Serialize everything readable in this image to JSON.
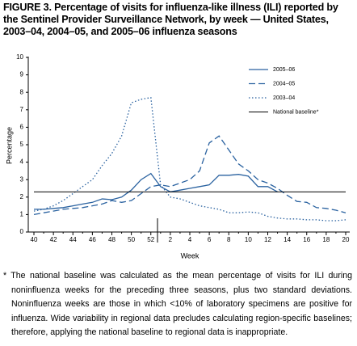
{
  "chart_data": {
    "type": "line",
    "title": "FIGURE 3. Percentage of visits for influenza-like illness (ILI) reported by the Sentinel Provider Surveillance Network, by week — United States, 2003–04, 2004–05, and 2005–06 influenza seasons",
    "ylabel": "Percentage",
    "xlabel": "Week",
    "categories": [
      "40",
      null,
      "42",
      null,
      "44",
      null,
      "46",
      null,
      "48",
      null,
      "50",
      null,
      "52",
      null,
      "2",
      null,
      "4",
      null,
      "6",
      null,
      "8",
      null,
      "10",
      null,
      "12",
      null,
      "14",
      null,
      "16",
      null,
      "18",
      null,
      "20"
    ],
    "ylim": [
      0,
      10
    ],
    "yticks": [
      0,
      1,
      2,
      3,
      4,
      5,
      6,
      7,
      8,
      9,
      10
    ],
    "series": [
      {
        "name": "2005–06",
        "color": "#2a62a0",
        "dash": "solid",
        "values": [
          1.3,
          1.3,
          1.35,
          1.4,
          1.5,
          1.6,
          1.7,
          1.9,
          1.85,
          2.0,
          2.4,
          3.0,
          3.35,
          2.6,
          2.3,
          2.4,
          2.5,
          2.6,
          2.7,
          3.25,
          3.25,
          3.3,
          3.2,
          2.6,
          2.6,
          2.3,
          null,
          null,
          null,
          null,
          null,
          null,
          null
        ]
      },
      {
        "name": "2004–05",
        "color": "#2a62a0",
        "dash": "dashed",
        "values": [
          1.0,
          1.1,
          1.2,
          1.3,
          1.35,
          1.4,
          1.5,
          1.6,
          1.8,
          1.7,
          1.8,
          2.2,
          2.6,
          2.7,
          2.6,
          2.8,
          3.0,
          3.5,
          5.1,
          5.5,
          4.7,
          3.9,
          3.5,
          3.0,
          2.8,
          2.5,
          2.1,
          1.75,
          1.7,
          1.4,
          1.35,
          1.25,
          1.1
        ]
      },
      {
        "name": "2003–04",
        "color": "#2a62a0",
        "dash": "dotted",
        "values": [
          1.2,
          1.3,
          1.5,
          1.8,
          2.2,
          2.6,
          3.0,
          3.8,
          4.5,
          5.5,
          7.4,
          7.6,
          7.7,
          2.7,
          2.0,
          1.9,
          1.7,
          1.5,
          1.4,
          1.3,
          1.1,
          1.1,
          1.15,
          1.1,
          0.9,
          0.8,
          0.75,
          0.75,
          0.7,
          0.7,
          0.65,
          0.65,
          0.7
        ]
      }
    ],
    "baseline": {
      "name": "National baseline*",
      "value": 2.3,
      "color": "#000000"
    },
    "legend": "upper right",
    "footnote": "* The national baseline was calculated as the mean percentage of visits for ILI during noninfluenza weeks for the preceding three seasons, plus two standard deviations. Noninfluenza weeks are those in which <10% of laboratory specimens are positive for influenza. Wide variability in regional data precludes calculating region-specific baselines; therefore, applying the national baseline to regional data is inappropriate."
  }
}
